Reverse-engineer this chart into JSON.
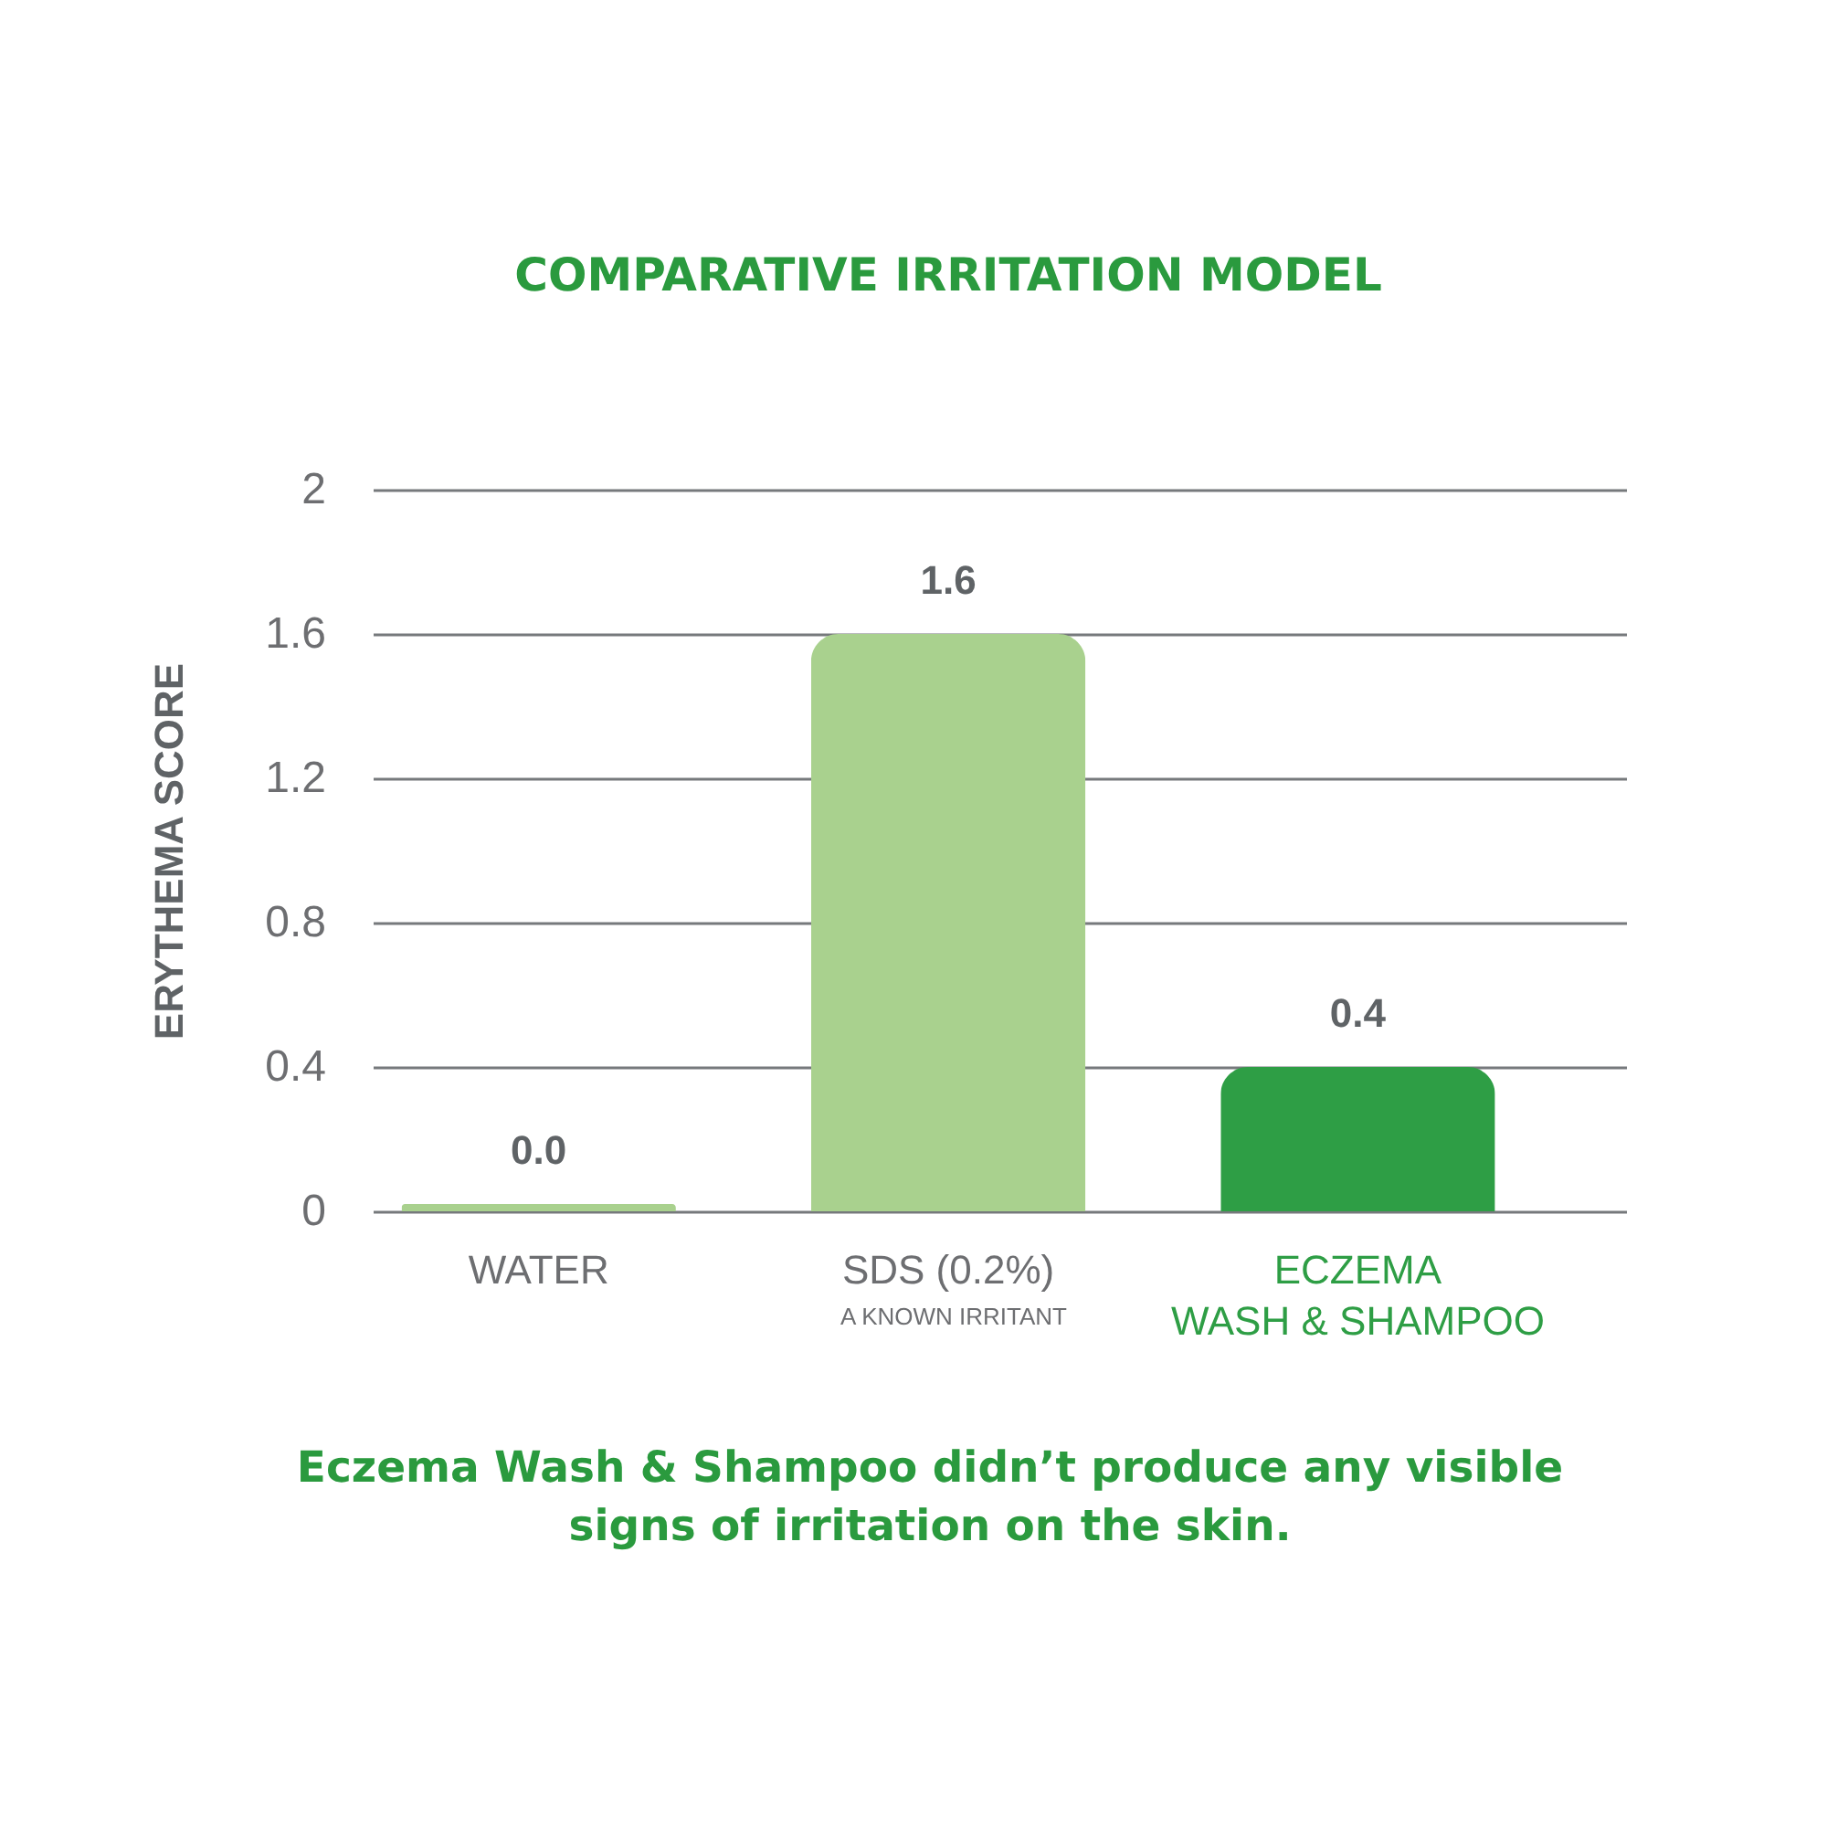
{
  "chart_data": {
    "type": "bar",
    "title": "COMPARATIVE IRRITATION MODEL",
    "ylabel": "ERYTHEMA SCORE",
    "categories": [
      "WATER",
      "SDS (0.2%)",
      "ECZEMA\nWASH & SHAMPOO"
    ],
    "values": [
      0.02,
      1.6,
      0.4
    ],
    "colors": [
      "#a9d18e",
      "#a9d18e",
      "#2e9e45"
    ],
    "value_labels": [
      "0.0",
      "1.6",
      "0.4"
    ],
    "ylim": [
      0,
      2
    ],
    "yticks": [
      0,
      0.4,
      0.8,
      1.2,
      1.6,
      2
    ],
    "grid": "y",
    "annotations": [
      "A KNOWN IRRITANT",
      "Eczema Wash & Shampoo didn’t produce any visible signs of irritation on the skin."
    ]
  }
}
